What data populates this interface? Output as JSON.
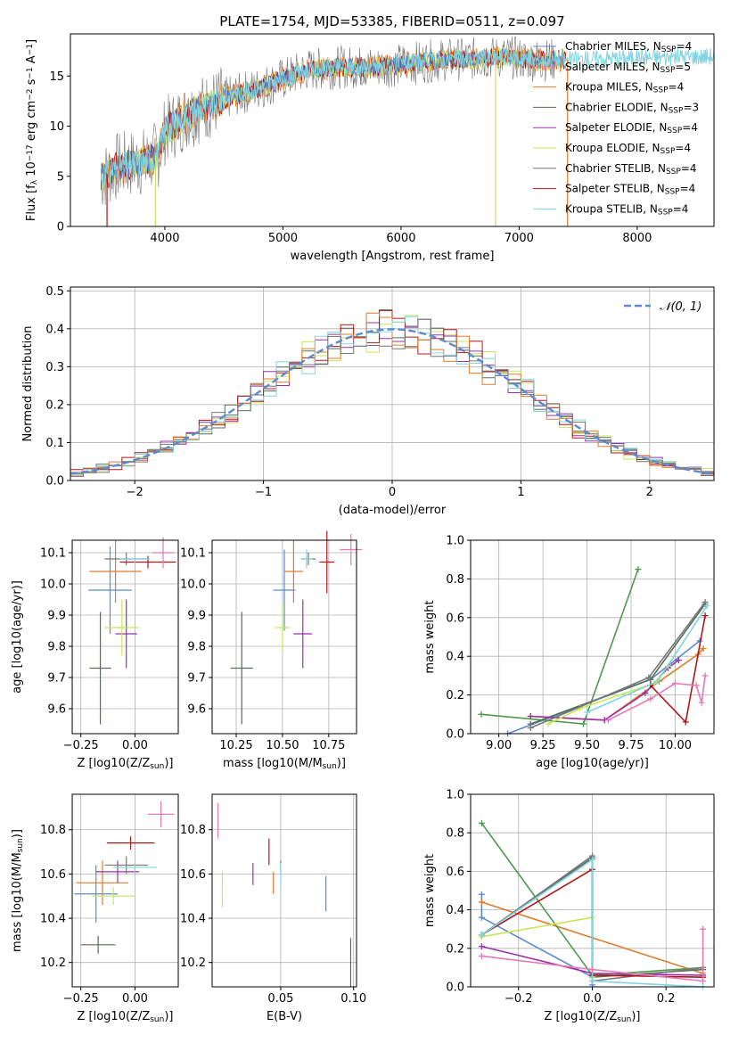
{
  "title": "PLATE=1754, MJD=53385, FIBERID=0511, z=0.097",
  "colors": {
    "mL": "#5b8bd0",
    "sL": "#e07b2a",
    "kL": "#4d9a4d",
    "cE": "#586e58",
    "sE": "#9932a8",
    "kE": "#c8e65a",
    "cS": "#777777",
    "sS": "#b01818",
    "kS": "#80d4e0",
    "pink": "#e37bb4",
    "norm": "#5b8bd0"
  },
  "legend_spectrum": [
    {
      "label": "Chabrier MILES, N",
      "sub": "SSP",
      "suffix": "=4",
      "color": "#5b8bd0"
    },
    {
      "label": "Salpeter MILES, N",
      "sub": "SSP",
      "suffix": "=5",
      "color": "#e37bb4"
    },
    {
      "label": "Kroupa MILES, N",
      "sub": "SSP",
      "suffix": "=4",
      "color": "#e07b2a"
    },
    {
      "label": "Chabrier ELODIE, N",
      "sub": "SSP",
      "suffix": "=3",
      "color": "#586e58"
    },
    {
      "label": "Salpeter ELODIE, N",
      "sub": "SSP",
      "suffix": "=4",
      "color": "#9932a8"
    },
    {
      "label": "Kroupa ELODIE, N",
      "sub": "SSP",
      "suffix": "=4",
      "color": "#c8e65a"
    },
    {
      "label": "Chabrier STELIB, N",
      "sub": "SSP",
      "suffix": "=4",
      "color": "#777777"
    },
    {
      "label": "Salpeter STELIB, N",
      "sub": "SSP",
      "suffix": "=4",
      "color": "#b01818"
    },
    {
      "label": "Kroupa STELIB, N",
      "sub": "SSP",
      "suffix": "=4",
      "color": "#80d4e0"
    }
  ],
  "chart_data": [
    {
      "id": "spectrum",
      "type": "line",
      "xlabel": "wavelength [Angstrom, rest frame]",
      "ylabel": "Flux [f_λ 10^-17 erg cm^-2 s^-1 A^-1]",
      "xlim": [
        3200,
        8650
      ],
      "ylim": [
        0,
        19.2
      ],
      "xticks": [
        4000,
        5000,
        6000,
        7000,
        8000
      ],
      "yticks": [
        0,
        5,
        10,
        15
      ],
      "continuum": [
        [
          3460,
          4.8
        ],
        [
          3600,
          6.0
        ],
        [
          3700,
          6.2
        ],
        [
          3850,
          6.5
        ],
        [
          3950,
          7.3
        ],
        [
          4000,
          9.5
        ],
        [
          4200,
          11.2
        ],
        [
          4500,
          12.7
        ],
        [
          4800,
          13.8
        ],
        [
          5000,
          14.7
        ],
        [
          5200,
          15.6
        ],
        [
          5500,
          15.9
        ],
        [
          5800,
          15.9
        ],
        [
          6000,
          16.1
        ],
        [
          6300,
          16.6
        ],
        [
          6600,
          16.7
        ],
        [
          6900,
          16.9
        ],
        [
          7100,
          16.6
        ],
        [
          7400,
          16.6
        ],
        [
          7800,
          16.8
        ],
        [
          8200,
          16.9
        ],
        [
          8600,
          17.0
        ]
      ],
      "spikes": [
        [
          3920,
          0
        ],
        [
          6800,
          0
        ],
        [
          7410,
          0
        ],
        [
          3480,
          0.5
        ],
        [
          3500,
          0.5
        ]
      ]
    },
    {
      "id": "residual-histogram",
      "type": "bar",
      "xlabel": "(data-model)/error",
      "ylabel": "Normed distribution",
      "xlim": [
        -2.5,
        2.5
      ],
      "ylim": [
        0,
        0.51
      ],
      "xticks": [
        -2,
        -1,
        0,
        1,
        2
      ],
      "yticks": [
        0.0,
        0.1,
        0.2,
        0.3,
        0.4,
        0.5
      ],
      "bin_width": 0.1,
      "legend": "N(0,1)",
      "normal_curve": {
        "mean": 0,
        "sigma": 1
      }
    },
    {
      "id": "age-vs-Z",
      "type": "scatter",
      "xlabel": "Z [log10(Z/Z_sun)]",
      "ylabel": "age [log10(age/yr)]",
      "xlim": [
        -0.29,
        0.2
      ],
      "ylim": [
        9.52,
        10.14
      ],
      "xticks": [
        -0.25,
        0.0
      ],
      "yticks": [
        9.6,
        9.7,
        9.8,
        9.9,
        10.0,
        10.1
      ],
      "points": [
        {
          "x": -0.115,
          "y": 9.98,
          "xerr": 0.1,
          "yerr": 0.14,
          "c": "#5b8bd0"
        },
        {
          "x": -0.09,
          "y": 10.04,
          "xerr": 0.12,
          "yerr": 0.1,
          "c": "#e07b2a"
        },
        {
          "x": -0.16,
          "y": 9.73,
          "xerr": 0.05,
          "yerr": 0.18,
          "c": "#586e58"
        },
        {
          "x": -0.04,
          "y": 9.84,
          "xerr": 0.05,
          "yerr": 0.11,
          "c": "#9932a8"
        },
        {
          "x": -0.06,
          "y": 9.86,
          "xerr": 0.08,
          "yerr": 0.09,
          "c": "#c8e65a"
        },
        {
          "x": -0.04,
          "y": 10.08,
          "xerr": 0.1,
          "yerr": 0.02,
          "c": "#777777"
        },
        {
          "x": 0.06,
          "y": 10.07,
          "xerr": 0.13,
          "yerr": 0.02,
          "c": "#b01818"
        },
        {
          "x": 0.0,
          "y": 10.08,
          "xerr": 0.07,
          "yerr": 0.02,
          "c": "#80d4e0"
        },
        {
          "x": 0.13,
          "y": 10.1,
          "xerr": 0.05,
          "yerr": 0.05,
          "c": "#e37bb4"
        }
      ]
    },
    {
      "id": "age-vs-mass",
      "type": "scatter",
      "xlabel": "mass [log10(M/M_sun)]",
      "ylabel": "",
      "xlim": [
        10.12,
        10.9
      ],
      "ylim": [
        9.52,
        10.14
      ],
      "xticks": [
        10.25,
        10.5,
        10.75
      ],
      "yticks": [
        9.6,
        9.7,
        9.8,
        9.9,
        10.0,
        10.1
      ],
      "points": [
        {
          "x": 10.51,
          "y": 9.98,
          "xerr": 0.06,
          "yerr": 0.13,
          "c": "#5b8bd0"
        },
        {
          "x": 10.56,
          "y": 10.04,
          "xerr": 0.05,
          "yerr": 0.1,
          "c": "#e07b2a"
        },
        {
          "x": 10.28,
          "y": 9.73,
          "xerr": 0.06,
          "yerr": 0.18,
          "c": "#586e58"
        },
        {
          "x": 10.61,
          "y": 9.84,
          "xerr": 0.05,
          "yerr": 0.11,
          "c": "#9932a8"
        },
        {
          "x": 10.5,
          "y": 9.86,
          "xerr": 0.04,
          "yerr": 0.08,
          "c": "#c8e65a"
        },
        {
          "x": 10.64,
          "y": 10.08,
          "xerr": 0.04,
          "yerr": 0.02,
          "c": "#777777"
        },
        {
          "x": 10.74,
          "y": 10.07,
          "xerr": 0.04,
          "yerr": 0.1,
          "c": "#b01818"
        },
        {
          "x": 10.63,
          "y": 10.08,
          "xerr": 0.03,
          "yerr": 0.03,
          "c": "#80d4e0"
        },
        {
          "x": 10.87,
          "y": 10.11,
          "xerr": 0.06,
          "yerr": 0.05,
          "c": "#e37bb4"
        }
      ]
    },
    {
      "id": "weight-vs-age",
      "type": "line",
      "xlabel": "age [log10(age/yr)]",
      "ylabel": "mass weight",
      "xlim": [
        8.84,
        10.22
      ],
      "ylim": [
        0,
        1
      ],
      "xticks": [
        9.0,
        9.25,
        9.5,
        9.75,
        10.0
      ],
      "yticks": [
        0.0,
        0.2,
        0.4,
        0.6,
        0.8,
        1.0
      ],
      "series": [
        {
          "c": "#5b8bd0",
          "pts": [
            [
              9.05,
              0.0
            ],
            [
              9.86,
              0.28
            ],
            [
              10.14,
              0.48
            ]
          ]
        },
        {
          "c": "#e07b2a",
          "pts": [
            [
              9.18,
              0.09
            ],
            [
              9.6,
              0.07
            ],
            [
              9.91,
              0.27
            ],
            [
              10.13,
              0.41
            ],
            [
              10.16,
              0.44
            ]
          ]
        },
        {
          "c": "#4d9a4d",
          "pts": [
            [
              8.9,
              0.1
            ],
            [
              9.48,
              0.05
            ],
            [
              9.79,
              0.85
            ]
          ]
        },
        {
          "c": "#586e58",
          "pts": [
            [
              9.18,
              0.05
            ],
            [
              9.86,
              0.28
            ],
            [
              10.17,
              0.67
            ]
          ]
        },
        {
          "c": "#9932a8",
          "pts": [
            [
              9.18,
              0.09
            ],
            [
              9.6,
              0.07
            ],
            [
              9.83,
              0.21
            ],
            [
              9.96,
              0.34
            ],
            [
              10.02,
              0.38
            ]
          ]
        },
        {
          "c": "#c8e65a",
          "pts": [
            [
              9.28,
              0.05
            ],
            [
              9.46,
              0.13
            ],
            [
              9.88,
              0.26
            ],
            [
              9.96,
              0.35
            ]
          ]
        },
        {
          "c": "#777777",
          "pts": [
            [
              9.18,
              0.03
            ],
            [
              9.85,
              0.29
            ],
            [
              10.17,
              0.68
            ]
          ]
        },
        {
          "c": "#b01818",
          "pts": [
            [
              9.86,
              0.25
            ],
            [
              10.06,
              0.06
            ],
            [
              10.17,
              0.61
            ]
          ]
        },
        {
          "c": "#80d4e0",
          "pts": [
            [
              9.5,
              0.11
            ],
            [
              9.9,
              0.27
            ],
            [
              10.18,
              0.66
            ]
          ]
        },
        {
          "c": "#e37bb4",
          "pts": [
            [
              9.62,
              0.07
            ],
            [
              9.86,
              0.18
            ],
            [
              10.0,
              0.26
            ],
            [
              10.12,
              0.25
            ],
            [
              10.15,
              0.16
            ],
            [
              10.17,
              0.3
            ]
          ]
        }
      ]
    },
    {
      "id": "mass-vs-Z",
      "type": "scatter",
      "xlabel": "Z [log10(Z/Z_sun)]",
      "ylabel": "mass [log10(M/M_sun)]",
      "xlim": [
        -0.29,
        0.2
      ],
      "ylim": [
        10.09,
        10.96
      ],
      "xticks": [
        -0.25,
        0.0
      ],
      "yticks": [
        10.2,
        10.4,
        10.6,
        10.8
      ],
      "points": [
        {
          "x": -0.18,
          "y": 10.51,
          "xerr": 0.1,
          "yerr": 0.13,
          "c": "#5b8bd0"
        },
        {
          "x": -0.15,
          "y": 10.56,
          "xerr": 0.12,
          "yerr": 0.1,
          "c": "#e07b2a"
        },
        {
          "x": -0.17,
          "y": 10.28,
          "xerr": 0.08,
          "yerr": 0.04,
          "c": "#586e58"
        },
        {
          "x": -0.08,
          "y": 10.61,
          "xerr": 0.1,
          "yerr": 0.05,
          "c": "#9932a8"
        },
        {
          "x": -0.1,
          "y": 10.5,
          "xerr": 0.1,
          "yerr": 0.04,
          "c": "#c8e65a"
        },
        {
          "x": -0.04,
          "y": 10.64,
          "xerr": 0.1,
          "yerr": 0.04,
          "c": "#777777"
        },
        {
          "x": -0.02,
          "y": 10.74,
          "xerr": 0.11,
          "yerr": 0.03,
          "c": "#b01818"
        },
        {
          "x": 0.0,
          "y": 10.63,
          "xerr": 0.1,
          "yerr": 0.03,
          "c": "#80d4e0"
        },
        {
          "x": 0.12,
          "y": 10.87,
          "xerr": 0.06,
          "yerr": 0.06,
          "c": "#e37bb4"
        }
      ]
    },
    {
      "id": "mass-vs-EBV",
      "type": "scatter",
      "xlabel": "E(B-V)",
      "ylabel": "",
      "xlim": [
        0.003,
        0.102
      ],
      "ylim": [
        10.09,
        10.96
      ],
      "xticks": [
        0.05,
        0.1
      ],
      "yticks": [
        10.2,
        10.4,
        10.6,
        10.8
      ],
      "points": [
        {
          "x": 0.081,
          "y": 10.51,
          "yerr": 0.08,
          "c": "#5b8bd0"
        },
        {
          "x": 0.045,
          "y": 10.56,
          "yerr": 0.05,
          "c": "#e07b2a"
        },
        {
          "x": 0.098,
          "y": 10.2,
          "yerr": 0.11,
          "c": "#586e58"
        },
        {
          "x": 0.031,
          "y": 10.6,
          "yerr": 0.05,
          "c": "#9932a8"
        },
        {
          "x": 0.01,
          "y": 10.53,
          "yerr": 0.08,
          "c": "#c8e65a"
        },
        {
          "x": 0.05,
          "y": 10.63,
          "yerr": 0.03,
          "c": "#777777"
        },
        {
          "x": 0.042,
          "y": 10.7,
          "yerr": 0.06,
          "c": "#b01818"
        },
        {
          "x": 0.05,
          "y": 10.6,
          "yerr": 0.05,
          "c": "#80d4e0"
        },
        {
          "x": 0.007,
          "y": 10.84,
          "yerr": 0.08,
          "c": "#e37bb4"
        }
      ]
    },
    {
      "id": "weight-vs-Z",
      "type": "line",
      "xlabel": "Z [log10(Z/Z_sun)]",
      "ylabel": "mass weight",
      "xlim": [
        -0.33,
        0.33
      ],
      "ylim": [
        0,
        1
      ],
      "xticks": [
        -0.2,
        0.0,
        0.2
      ],
      "yticks": [
        0.0,
        0.2,
        0.4,
        0.6,
        0.8,
        1.0
      ],
      "series": [
        {
          "c": "#5b8bd0",
          "pts": [
            [
              -0.3,
              0.48
            ],
            [
              -0.3,
              0.36
            ],
            [
              0.0,
              0.05
            ],
            [
              0.0,
              0.01
            ]
          ]
        },
        {
          "c": "#e07b2a",
          "pts": [
            [
              -0.3,
              0.44
            ],
            [
              0.3,
              0.07
            ]
          ]
        },
        {
          "c": "#4d9a4d",
          "pts": [
            [
              -0.3,
              0.85
            ],
            [
              0.0,
              0.06
            ],
            [
              0.3,
              0.1
            ]
          ]
        },
        {
          "c": "#586e58",
          "pts": [
            [
              -0.3,
              0.27
            ],
            [
              0.0,
              0.67
            ],
            [
              0.0,
              0.05
            ],
            [
              0.3,
              0.09
            ]
          ]
        },
        {
          "c": "#9932a8",
          "pts": [
            [
              -0.3,
              0.21
            ],
            [
              0.0,
              0.07
            ],
            [
              0.3,
              0.06
            ]
          ]
        },
        {
          "c": "#c8e65a",
          "pts": [
            [
              -0.3,
              0.26
            ],
            [
              0.0,
              0.36
            ],
            [
              0.0,
              0.05
            ]
          ]
        },
        {
          "c": "#777777",
          "pts": [
            [
              -0.3,
              0.27
            ],
            [
              0.0,
              0.68
            ],
            [
              0.0,
              0.03
            ],
            [
              0.3,
              0.1
            ]
          ]
        },
        {
          "c": "#b01818",
          "pts": [
            [
              -0.3,
              0.27
            ],
            [
              0.0,
              0.61
            ],
            [
              0.0,
              0.06
            ],
            [
              0.3,
              0.05
            ]
          ]
        },
        {
          "c": "#80d4e0",
          "pts": [
            [
              -0.3,
              0.27
            ],
            [
              0.0,
              0.66
            ],
            [
              0.0,
              0.03
            ],
            [
              0.3,
              0.0
            ]
          ]
        },
        {
          "c": "#e37bb4",
          "pts": [
            [
              -0.3,
              0.16
            ],
            [
              0.0,
              0.09
            ],
            [
              0.3,
              0.03
            ],
            [
              0.3,
              0.3
            ]
          ]
        }
      ]
    }
  ]
}
